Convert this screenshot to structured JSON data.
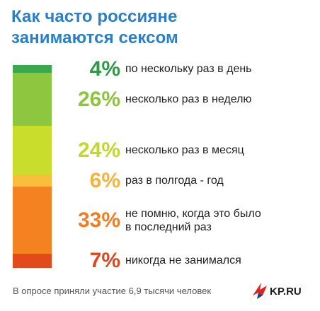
{
  "title_line1": "Как часто россияне",
  "title_line2": "занимаются сексом",
  "chart_data": {
    "type": "bar",
    "subtype": "stacked-single",
    "categories": [
      "по нескольку раз в день",
      "несколько раз в неделю",
      "несколько раз в месяц",
      "раз в полгода - год",
      "не помню, когда это было в последний раз",
      "никогда не занимался"
    ],
    "values": [
      4,
      26,
      24,
      6,
      33,
      7
    ],
    "value_labels": [
      "4%",
      "26%",
      "24%",
      "6%",
      "33%",
      "7%"
    ],
    "colors": [
      "#3aa84d",
      "#8dc63f",
      "#c9de2c",
      "#f9be3b",
      "#f58220",
      "#e24a1b"
    ],
    "label_colors": [
      "#2e9a45",
      "#8cc43a",
      "#c2d82a",
      "#f4b33a",
      "#f37c1e",
      "#e0461b"
    ],
    "label_lines": [
      [
        "по нескольку раз в день"
      ],
      [
        "несколько раз в неделю"
      ],
      [
        "несколько раз в месяц"
      ],
      [
        "раз в полгода - год"
      ],
      [
        "не помню, когда это было",
        "в последний раз"
      ],
      [
        "никогда не занимался"
      ]
    ]
  },
  "footer": {
    "source": "В опросе приняли участие 6,9 тысячи человек",
    "logo_text": "KP.RU"
  }
}
